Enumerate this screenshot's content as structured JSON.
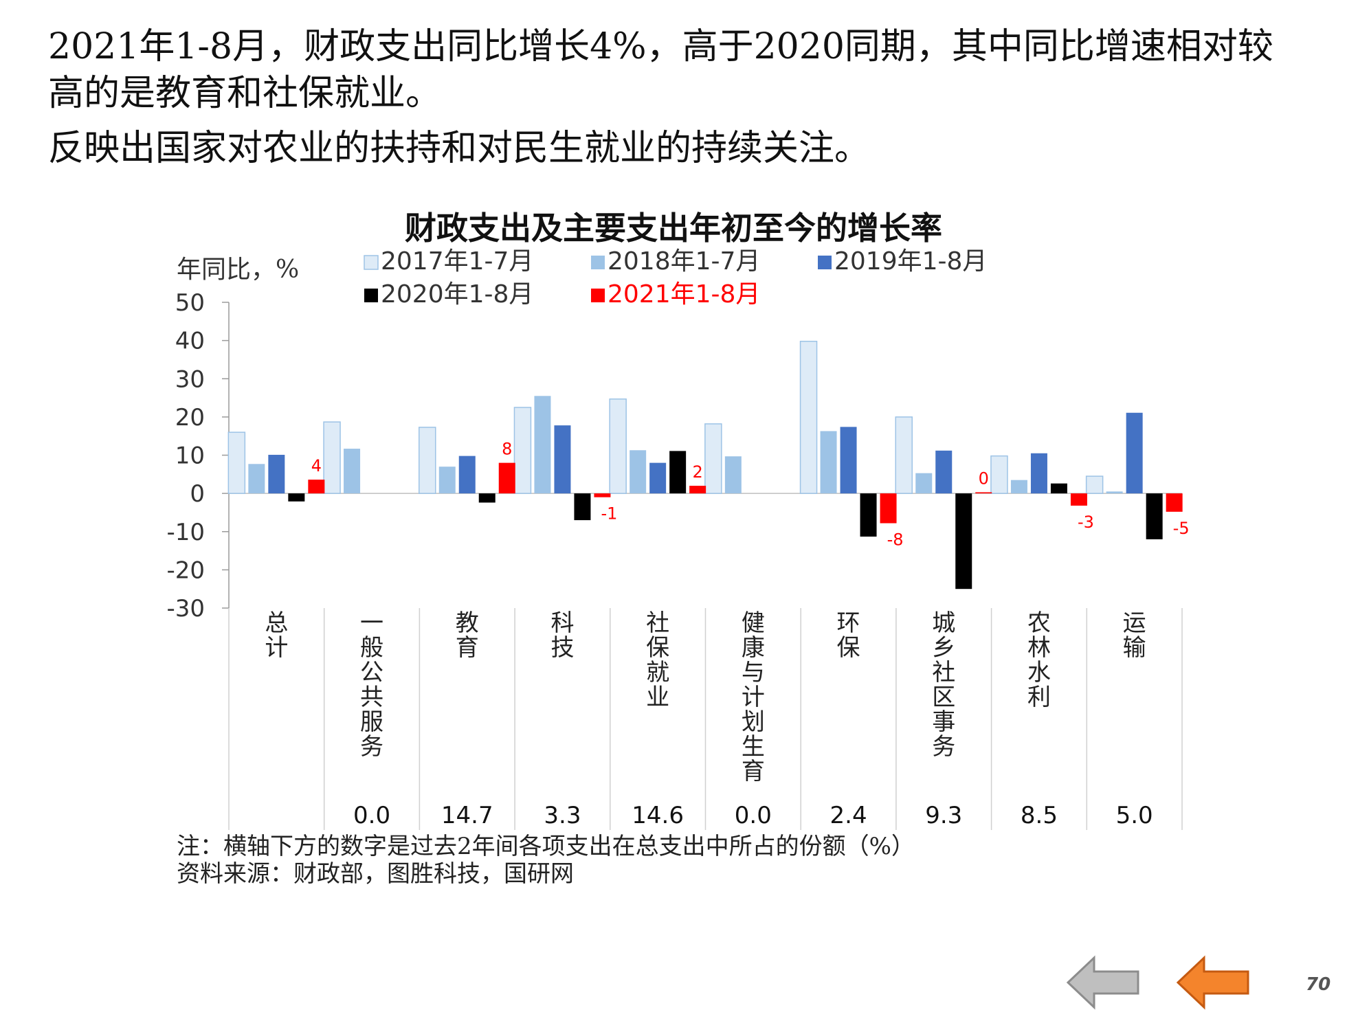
{
  "slide": {
    "headline_line1": "2021年1-8月，财政支出同比增长4%，高于2020同期，其中同比增速相对较",
    "headline_line1b": "高的是教育和社保就业。",
    "headline_line2": "反映出国家对农业的扶持和对民生就业的持续关注。",
    "note": "注：横轴下方的数字是过去2年间各项支出在总支出中所占的份额（%）",
    "source": "资料来源：财政部，图胜科技，国研网",
    "page_number": "70",
    "nav": {
      "prev_icon": "left-arrow-icon-gray",
      "next_icon": "left-arrow-icon-orange"
    }
  },
  "chart_data": {
    "type": "bar",
    "title": "财政支出及主要支出年初至今的增长率",
    "ylabel": "年同比，%",
    "ylim": [
      -30,
      50
    ],
    "yticks": [
      50,
      40,
      30,
      20,
      10,
      0,
      -10,
      -20,
      -30
    ],
    "grid": false,
    "legend_placement": "top",
    "categories": [
      "总计",
      "一般公共服务",
      "教育",
      "科技",
      "社保就业",
      "健康与计划生育",
      "环保",
      "城乡社区事务",
      "农林水利",
      "运输"
    ],
    "category_shares": [
      "",
      "0.0",
      "14.7",
      "3.3",
      "14.6",
      "0.0",
      "2.4",
      "9.3",
      "8.5",
      "5.0"
    ],
    "series": [
      {
        "name": "2017年1-7月",
        "color": "#deebf7",
        "stroke": "#9dc3e6",
        "values": [
          16,
          18.7,
          17.3,
          22.5,
          24.7,
          18.2,
          39.8,
          20,
          9.8,
          4.5
        ]
      },
      {
        "name": "2018年1-7月",
        "color": "#9dc3e6",
        "stroke": "",
        "values": [
          7.7,
          11.7,
          7.0,
          25.5,
          11.3,
          9.7,
          16.3,
          5.3,
          3.5,
          0.5
        ]
      },
      {
        "name": "2019年1-8月",
        "color": "#4472c4",
        "stroke": "",
        "values": [
          10.1,
          null,
          9.8,
          17.8,
          8.0,
          null,
          17.4,
          11.2,
          10.5,
          21.1
        ]
      },
      {
        "name": "2020年1-8月",
        "color": "#000000",
        "stroke": "",
        "values": [
          -2.1,
          null,
          -2.4,
          -7.0,
          11.1,
          null,
          -11.3,
          -25.0,
          2.6,
          -12.0
        ]
      },
      {
        "name": "2021年1-8月",
        "color": "#ff0000",
        "stroke": "",
        "legend_text_color": "#ff0000",
        "values": [
          3.6,
          null,
          8.0,
          -1.0,
          2.0,
          null,
          -7.8,
          0.3,
          -3.2,
          -4.8
        ],
        "labels": [
          "4",
          null,
          "8",
          "-1",
          "2",
          null,
          "-8",
          "0",
          "-3",
          "-5"
        ]
      }
    ]
  }
}
